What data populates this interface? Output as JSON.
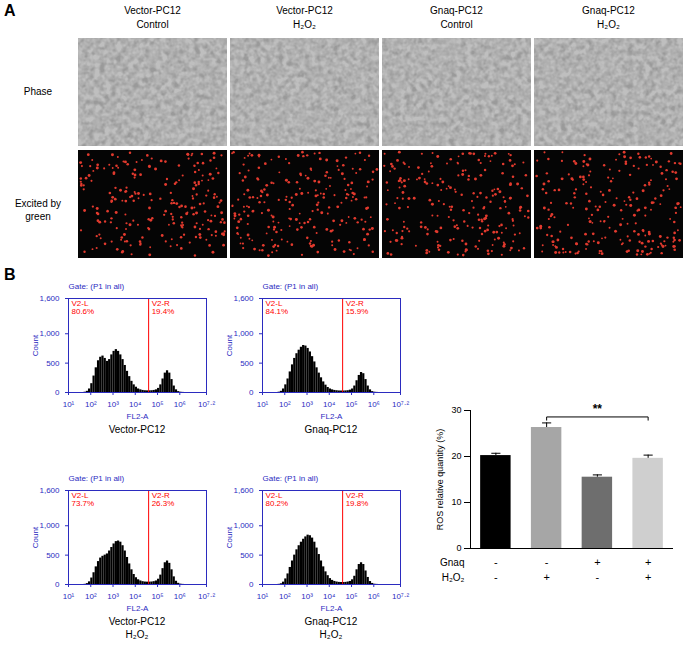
{
  "panel_a": {
    "label": "A",
    "columns": [
      {
        "line1": "Vector-PC12",
        "line2": "Control"
      },
      {
        "line1": "Vector-PC12",
        "line2": "H₂O₂"
      },
      {
        "line1": "Gnaq-PC12",
        "line2": "Control"
      },
      {
        "line1": "Gnaq-PC12",
        "line2": "H₂O₂"
      }
    ],
    "rows": [
      "Phase",
      "Excited by green"
    ]
  },
  "panel_b": {
    "label": "B"
  },
  "chart_data": [
    {
      "type": "histogram",
      "title": "Vector-PC12",
      "gate_label": "Gate: (P1 in all)",
      "x_label": "FL2-A",
      "y_label": "Count",
      "log": "x",
      "color": "#000000",
      "xlim": [
        10,
        15848932
      ],
      "xticks": [
        {
          "value": 10,
          "label": "10¹"
        },
        {
          "value": 100,
          "label": "10²"
        },
        {
          "value": 1000,
          "label": "10³"
        },
        {
          "value": 10000,
          "label": "10⁴"
        },
        {
          "value": 100000,
          "label": "10⁵"
        },
        {
          "value": 1000000,
          "label": "10⁶"
        },
        {
          "value": 15848932,
          "label": "10⁷·²"
        }
      ],
      "ylim": [
        0,
        1600
      ],
      "yticks": [
        0,
        500,
        {
          "value": 1000,
          "label": "1,000"
        },
        {
          "value": 1600,
          "label": "1,600"
        }
      ],
      "bins": [
        40,
        50,
        63,
        79,
        100,
        126,
        158,
        200,
        251,
        316,
        398,
        501,
        631,
        794,
        1000,
        1259,
        1585,
        1995,
        2512,
        3162,
        3981,
        5012,
        6310,
        7943,
        10000,
        12589,
        15849,
        19953,
        25119,
        31623,
        39811,
        50119,
        63096,
        79433,
        100000,
        125893,
        158489,
        199526,
        251189,
        316228,
        398107,
        501187,
        630957,
        794328,
        1000000,
        1258925,
        1584893,
        1995262,
        2511886
      ],
      "counts": [
        0,
        5,
        20,
        60,
        150,
        280,
        420,
        540,
        600,
        620,
        580,
        530,
        560,
        640,
        700,
        730,
        700,
        640,
        560,
        460,
        360,
        270,
        190,
        130,
        90,
        60,
        45,
        35,
        30,
        28,
        28,
        30,
        35,
        45,
        70,
        130,
        230,
        330,
        370,
        330,
        220,
        110,
        45,
        15,
        5,
        2,
        0,
        0
      ],
      "regions": {
        "names": [
          "V2-L",
          "V2-R"
        ],
        "values": [
          80.6,
          19.4
        ],
        "value_labels": [
          "80.6%",
          "19.4%"
        ],
        "boundary": 39811,
        "color": "#ff0000"
      }
    },
    {
      "type": "histogram",
      "title": "Gnaq-PC12",
      "gate_label": "Gate: (P1 in all)",
      "x_label": "FL2-A",
      "y_label": "Count",
      "log": "x",
      "color": "#000000",
      "xlim": [
        10,
        15848932
      ],
      "xticks": [
        {
          "value": 10,
          "label": "10¹"
        },
        {
          "value": 100,
          "label": "10²"
        },
        {
          "value": 1000,
          "label": "10³"
        },
        {
          "value": 10000,
          "label": "10⁴"
        },
        {
          "value": 100000,
          "label": "10⁵"
        },
        {
          "value": 1000000,
          "label": "10⁶"
        },
        {
          "value": 15848932,
          "label": "10⁷·²"
        }
      ],
      "ylim": [
        0,
        1600
      ],
      "yticks": [
        0,
        500,
        {
          "value": 1000,
          "label": "1,000"
        },
        {
          "value": 1600,
          "label": "1,600"
        }
      ],
      "bins": [
        40,
        50,
        63,
        79,
        100,
        126,
        158,
        200,
        251,
        316,
        398,
        501,
        631,
        794,
        1000,
        1259,
        1585,
        1995,
        2512,
        3162,
        3981,
        5012,
        6310,
        7943,
        10000,
        12589,
        15849,
        19953,
        25119,
        31623,
        39811,
        50119,
        63096,
        79433,
        100000,
        125893,
        158489,
        199526,
        251189,
        316228,
        398107,
        501187,
        630957,
        794328,
        1000000,
        1258925,
        1584893,
        1995262,
        2511886
      ],
      "counts": [
        0,
        5,
        20,
        60,
        130,
        230,
        350,
        470,
        580,
        660,
        720,
        770,
        800,
        790,
        750,
        690,
        610,
        520,
        420,
        330,
        250,
        180,
        125,
        85,
        60,
        45,
        35,
        30,
        26,
        25,
        25,
        27,
        30,
        40,
        60,
        110,
        200,
        290,
        340,
        320,
        220,
        110,
        45,
        15,
        5,
        2,
        0,
        0
      ],
      "regions": {
        "names": [
          "V2-L",
          "V2-R"
        ],
        "values": [
          84.1,
          15.9
        ],
        "value_labels": [
          "84.1%",
          "15.9%"
        ],
        "boundary": 39811,
        "color": "#ff0000"
      }
    },
    {
      "type": "histogram",
      "title": "Vector-PC12",
      "subtitle": "H₂O₂",
      "gate_label": "Gate: (P1 in all)",
      "x_label": "FL2-A",
      "y_label": "Count",
      "log": "x",
      "color": "#000000",
      "xlim": [
        10,
        15848932
      ],
      "xticks": [
        {
          "value": 10,
          "label": "10¹"
        },
        {
          "value": 100,
          "label": "10²"
        },
        {
          "value": 1000,
          "label": "10³"
        },
        {
          "value": 10000,
          "label": "10⁴"
        },
        {
          "value": 100000,
          "label": "10⁵"
        },
        {
          "value": 1000000,
          "label": "10⁶"
        },
        {
          "value": 15848932,
          "label": "10⁷·²"
        }
      ],
      "ylim": [
        0,
        1600
      ],
      "yticks": [
        0,
        500,
        {
          "value": 1000,
          "label": "1,000"
        },
        {
          "value": 1600,
          "label": "1,600"
        }
      ],
      "bins": [
        40,
        50,
        63,
        79,
        100,
        126,
        158,
        200,
        251,
        316,
        398,
        501,
        631,
        794,
        1000,
        1259,
        1585,
        1995,
        2512,
        3162,
        3981,
        5012,
        6310,
        7943,
        10000,
        12589,
        15849,
        19953,
        25119,
        31623,
        39811,
        50119,
        63096,
        79433,
        100000,
        125893,
        158489,
        199526,
        251189,
        316228,
        398107,
        501187,
        630957,
        794328,
        1000000,
        1258925,
        1584893,
        1995262,
        2511886
      ],
      "counts": [
        0,
        3,
        15,
        45,
        110,
        200,
        300,
        390,
        450,
        480,
        500,
        520,
        570,
        630,
        690,
        730,
        740,
        720,
        660,
        570,
        460,
        350,
        250,
        170,
        115,
        80,
        60,
        48,
        42,
        40,
        40,
        42,
        48,
        60,
        90,
        160,
        270,
        370,
        400,
        360,
        250,
        130,
        55,
        20,
        6,
        2,
        0,
        0
      ],
      "regions": {
        "names": [
          "V2-L",
          "V2-R"
        ],
        "values": [
          73.7,
          26.3
        ],
        "value_labels": [
          "73.7%",
          "26.3%"
        ],
        "boundary": 39811,
        "color": "#ff0000"
      }
    },
    {
      "type": "histogram",
      "title": "Gnaq-PC12",
      "subtitle": "H₂O₂",
      "gate_label": "Gate: (P1 in all)",
      "x_label": "FL2-A",
      "y_label": "Count",
      "log": "x",
      "color": "#000000",
      "xlim": [
        10,
        15848932
      ],
      "xticks": [
        {
          "value": 10,
          "label": "10¹"
        },
        {
          "value": 100,
          "label": "10²"
        },
        {
          "value": 1000,
          "label": "10³"
        },
        {
          "value": 10000,
          "label": "10⁴"
        },
        {
          "value": 100000,
          "label": "10⁵"
        },
        {
          "value": 1000000,
          "label": "10⁶"
        },
        {
          "value": 15848932,
          "label": "10⁷·²"
        }
      ],
      "ylim": [
        0,
        1600
      ],
      "yticks": [
        0,
        500,
        {
          "value": 1000,
          "label": "1,000"
        },
        {
          "value": 1600,
          "label": "1,600"
        }
      ],
      "bins": [
        40,
        50,
        63,
        79,
        100,
        126,
        158,
        200,
        251,
        316,
        398,
        501,
        631,
        794,
        1000,
        1259,
        1585,
        1995,
        2512,
        3162,
        3981,
        5012,
        6310,
        7943,
        10000,
        12589,
        15849,
        19953,
        25119,
        31623,
        39811,
        50119,
        63096,
        79433,
        100000,
        125893,
        158489,
        199526,
        251189,
        316228,
        398107,
        501187,
        630957,
        794328,
        1000000,
        1258925,
        1584893,
        1995262,
        2511886
      ],
      "counts": [
        0,
        3,
        12,
        40,
        95,
        180,
        290,
        400,
        500,
        590,
        660,
        720,
        770,
        810,
        840,
        830,
        790,
        720,
        620,
        510,
        400,
        300,
        215,
        150,
        100,
        70,
        52,
        42,
        36,
        34,
        34,
        36,
        42,
        52,
        80,
        140,
        250,
        340,
        370,
        340,
        230,
        120,
        50,
        18,
        5,
        2,
        0,
        0
      ],
      "regions": {
        "names": [
          "V2-L",
          "V2-R"
        ],
        "values": [
          80.2,
          19.8
        ],
        "value_labels": [
          "80.2%",
          "19.8%"
        ],
        "boundary": 39811,
        "color": "#ff0000"
      }
    },
    {
      "type": "bar",
      "y_label": "ROS relative quantity (%)",
      "categories": [
        null,
        null,
        null,
        null
      ],
      "values": [
        20.2,
        26.3,
        15.5,
        19.6
      ],
      "errors": [
        0.5,
        1.0,
        0.5,
        0.7
      ],
      "colors": [
        "#000000",
        "#a6a6a6",
        "#6e6e6e",
        "#cfcfcf"
      ],
      "ylim": [
        0,
        30
      ],
      "yticks": [
        0,
        10,
        20,
        30
      ],
      "conditions": [
        {
          "name": "Gnaq",
          "values": [
            "-",
            "-",
            "+",
            "+"
          ]
        },
        {
          "name": "H₂O₂",
          "values": [
            "-",
            "+",
            "-",
            "+"
          ]
        }
      ],
      "annotations": [
        {
          "text": "**",
          "from": 1,
          "to": 3
        }
      ]
    }
  ]
}
